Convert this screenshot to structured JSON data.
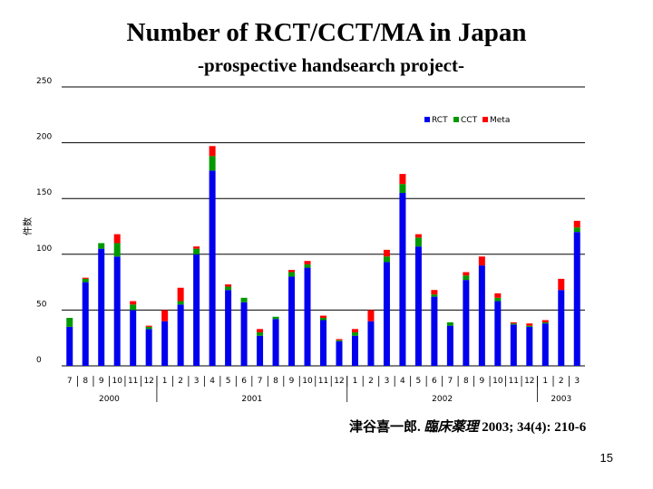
{
  "page": {
    "title": "Number of RCT/CCT/MA in Japan",
    "subtitle": "-prospective handsearch project-",
    "citation": {
      "author": "津谷喜一郎.",
      "journal": "臨床薬理",
      "reference": "2003; 34(4): 210-6"
    },
    "page_number": "15"
  },
  "chart_data": {
    "type": "bar",
    "stacked": true,
    "ylabel": "件数",
    "ylim": [
      0,
      250
    ],
    "yticks": [
      "0",
      "50",
      "100",
      "150",
      "200",
      "250"
    ],
    "legend_position": "top-right",
    "categories": [
      "7",
      "8",
      "9",
      "10",
      "11",
      "12",
      "1",
      "2",
      "3",
      "4",
      "5",
      "6",
      "7",
      "8",
      "9",
      "10",
      "11",
      "12",
      "1",
      "2",
      "3",
      "4",
      "5",
      "6",
      "7",
      "8",
      "9",
      "10",
      "11",
      "12",
      "1",
      "2",
      "3"
    ],
    "year_groups": [
      {
        "label": "2000",
        "start": 0,
        "end": 5
      },
      {
        "label": "2001",
        "start": 6,
        "end": 17
      },
      {
        "label": "2002",
        "start": 18,
        "end": 29
      },
      {
        "label": "2003",
        "start": 30,
        "end": 32
      }
    ],
    "series": [
      {
        "name": "RCT",
        "color": "#0000ee",
        "values": [
          35,
          75,
          105,
          98,
          50,
          33,
          40,
          55,
          100,
          175,
          68,
          57,
          27,
          42,
          80,
          88,
          41,
          22,
          27,
          40,
          93,
          155,
          107,
          62,
          36,
          77,
          90,
          58,
          37,
          35,
          38,
          68,
          120
        ]
      },
      {
        "name": "CCT",
        "color": "#009900",
        "values": [
          8,
          3,
          5,
          12,
          5,
          2,
          0,
          3,
          5,
          13,
          3,
          4,
          3,
          2,
          4,
          3,
          2,
          1,
          3,
          0,
          5,
          8,
          8,
          2,
          3,
          4,
          0,
          3,
          1,
          1,
          1,
          0,
          4
        ]
      },
      {
        "name": "Meta",
        "color": "#ff0000",
        "values": [
          0,
          1,
          0,
          8,
          3,
          1,
          10,
          12,
          2,
          9,
          2,
          0,
          3,
          0,
          2,
          3,
          2,
          1,
          3,
          10,
          6,
          9,
          3,
          4,
          0,
          3,
          8,
          4,
          1,
          2,
          2,
          10,
          6
        ]
      }
    ]
  }
}
